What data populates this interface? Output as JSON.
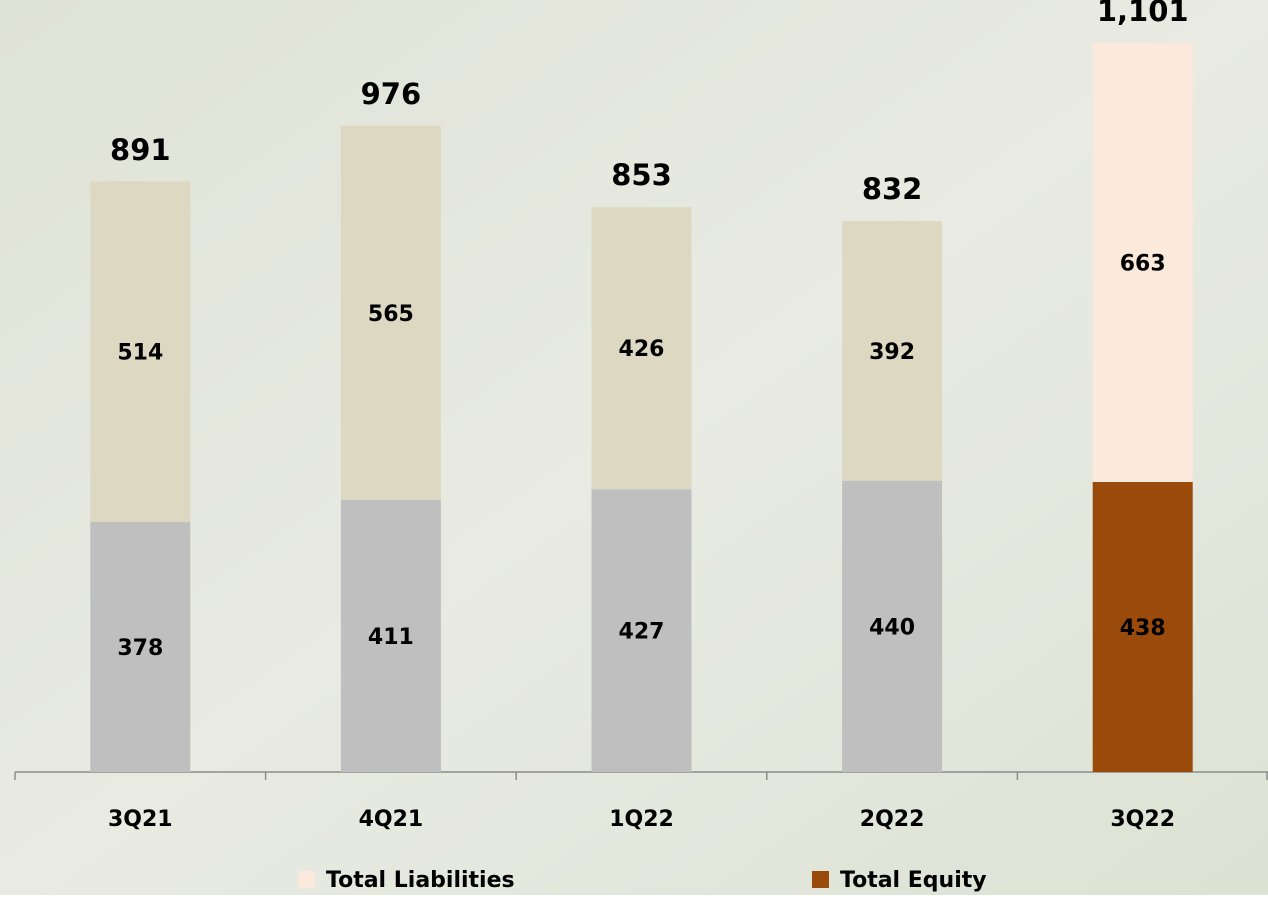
{
  "chart_data": {
    "type": "stacked-bar",
    "categories": [
      "3Q21",
      "4Q21",
      "1Q22",
      "2Q22",
      "3Q22"
    ],
    "series": [
      {
        "name": "Total Equity",
        "color": "#9a4a0a",
        "colors": [
          "#bfbfbf",
          "#bfbfbf",
          "#bfbfbf",
          "#bfbfbf",
          "#9a4a0a"
        ],
        "label_colors": [
          "#000000",
          "#000000",
          "#000000",
          "#000000",
          "#ffffff"
        ],
        "values": [
          378,
          411,
          427,
          440,
          438
        ]
      },
      {
        "name": "Total Liabilities",
        "color": "#fbe9dc",
        "colors": [
          "#ddd8c2",
          "#ddd8c2",
          "#ddd8c2",
          "#ddd8c2",
          "#fbe9dc"
        ],
        "label_colors": [
          "#000000",
          "#000000",
          "#000000",
          "#000000",
          "#000000"
        ],
        "values": [
          514,
          565,
          426,
          392,
          663
        ]
      }
    ],
    "totals": {
      "values": [
        891,
        976,
        853,
        832,
        1101
      ],
      "value_labels": [
        "891",
        "976",
        "853",
        "832",
        "1,101"
      ]
    },
    "legend_order": [
      1,
      0
    ]
  }
}
